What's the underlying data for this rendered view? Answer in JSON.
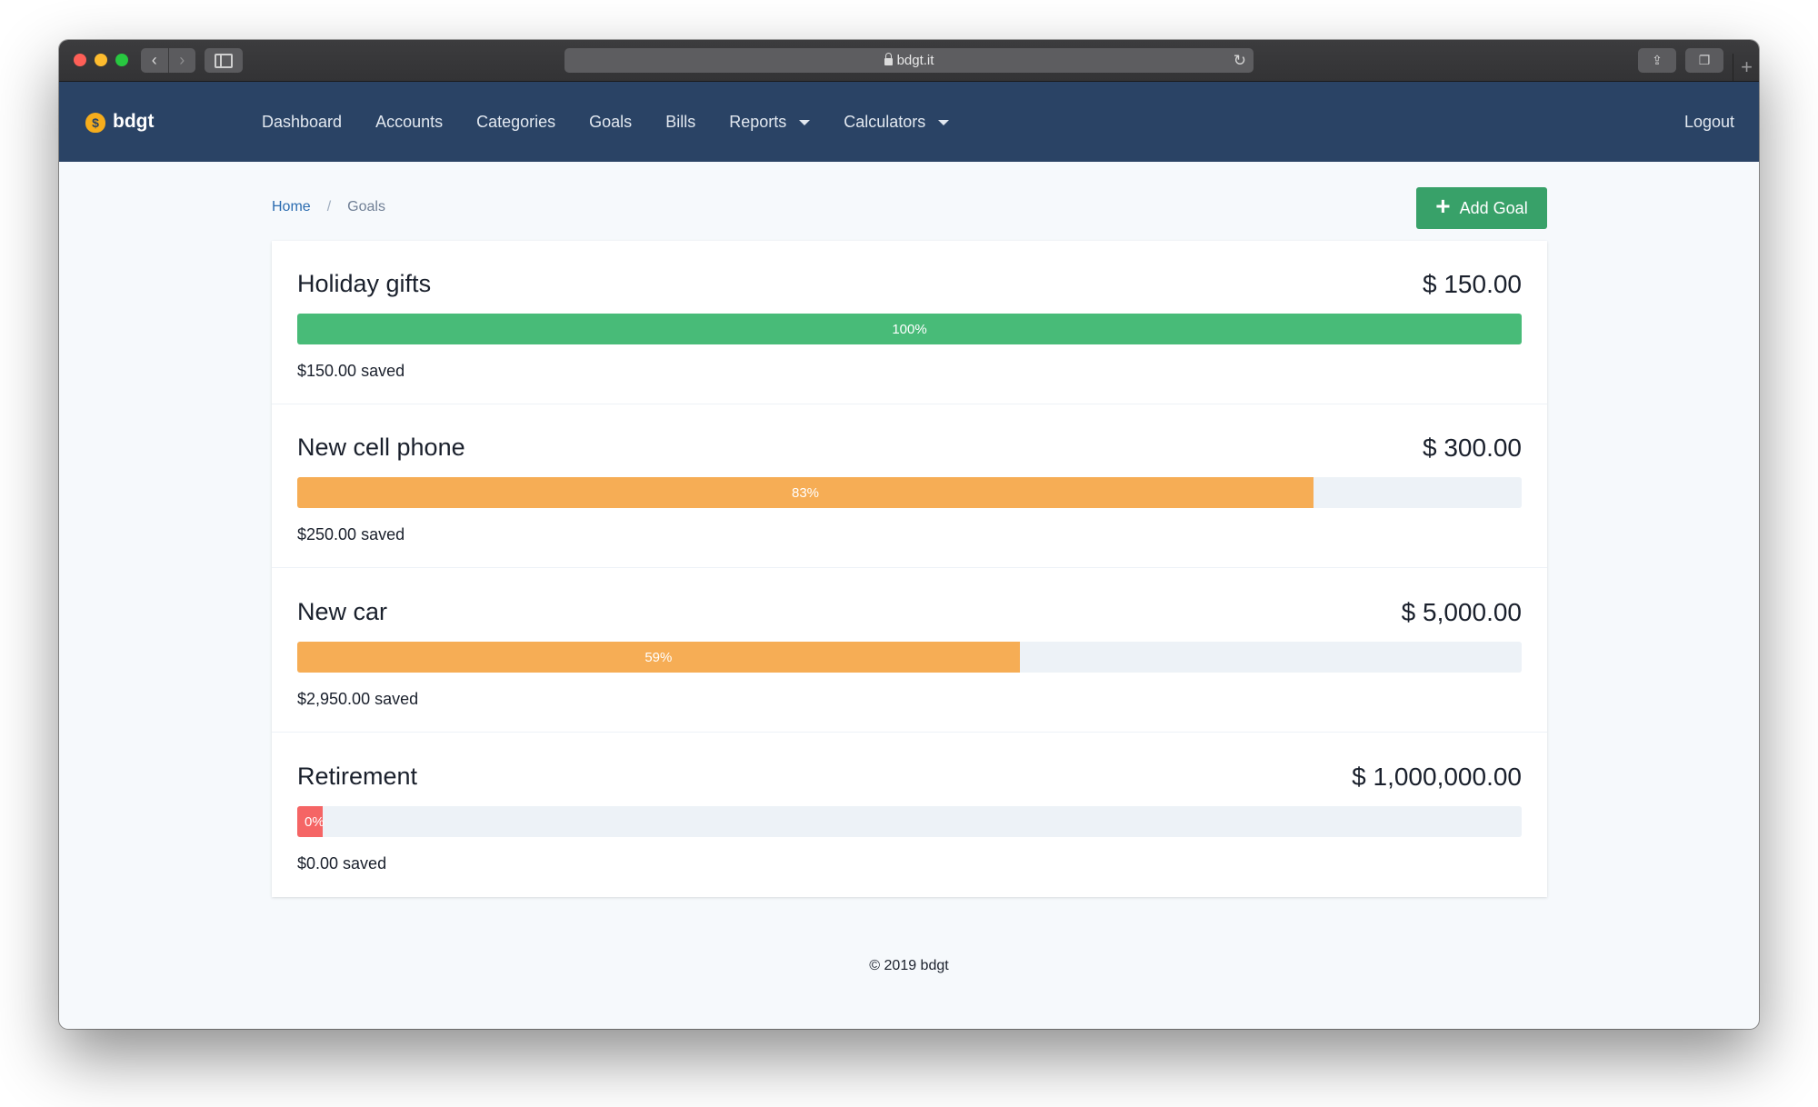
{
  "browser": {
    "url": "bdgt.it",
    "nav_back": "‹",
    "nav_forward": "›",
    "reload_glyph": "↻",
    "share_glyph": "⇪",
    "tabs_glyph": "❐",
    "newtab_glyph": "+"
  },
  "navbar": {
    "brand": "bdgt",
    "brand_icon": "money-bag-icon",
    "brand_icon_glyph": "$",
    "links": [
      {
        "label": "Dashboard"
      },
      {
        "label": "Accounts"
      },
      {
        "label": "Categories"
      },
      {
        "label": "Goals"
      },
      {
        "label": "Bills"
      },
      {
        "label": "Reports"
      },
      {
        "label": "Calculators"
      }
    ],
    "logout": "Logout"
  },
  "breadcrumb": {
    "home": "Home",
    "separator": "/",
    "current": "Goals"
  },
  "add_goal": {
    "icon": "+",
    "label": "Add Goal"
  },
  "goals": [
    {
      "name": "Holiday gifts",
      "amount": "$ 150.00",
      "percent": 100,
      "percent_label": "100%",
      "saved": "$150.00 saved",
      "color": "#48bb78"
    },
    {
      "name": "New cell phone",
      "amount": "$ 300.00",
      "percent": 83,
      "percent_label": "83%",
      "saved": "$250.00 saved",
      "color": "#f6ad55"
    },
    {
      "name": "New car",
      "amount": "$ 5,000.00",
      "percent": 59,
      "percent_label": "59%",
      "saved": "$2,950.00 saved",
      "color": "#f6ad55"
    },
    {
      "name": "Retirement",
      "amount": "$ 1,000,000.00",
      "percent": 0,
      "percent_label": "0%",
      "saved": "$0.00 saved",
      "color": "#f56565"
    }
  ],
  "footer": "© 2019 bdgt"
}
